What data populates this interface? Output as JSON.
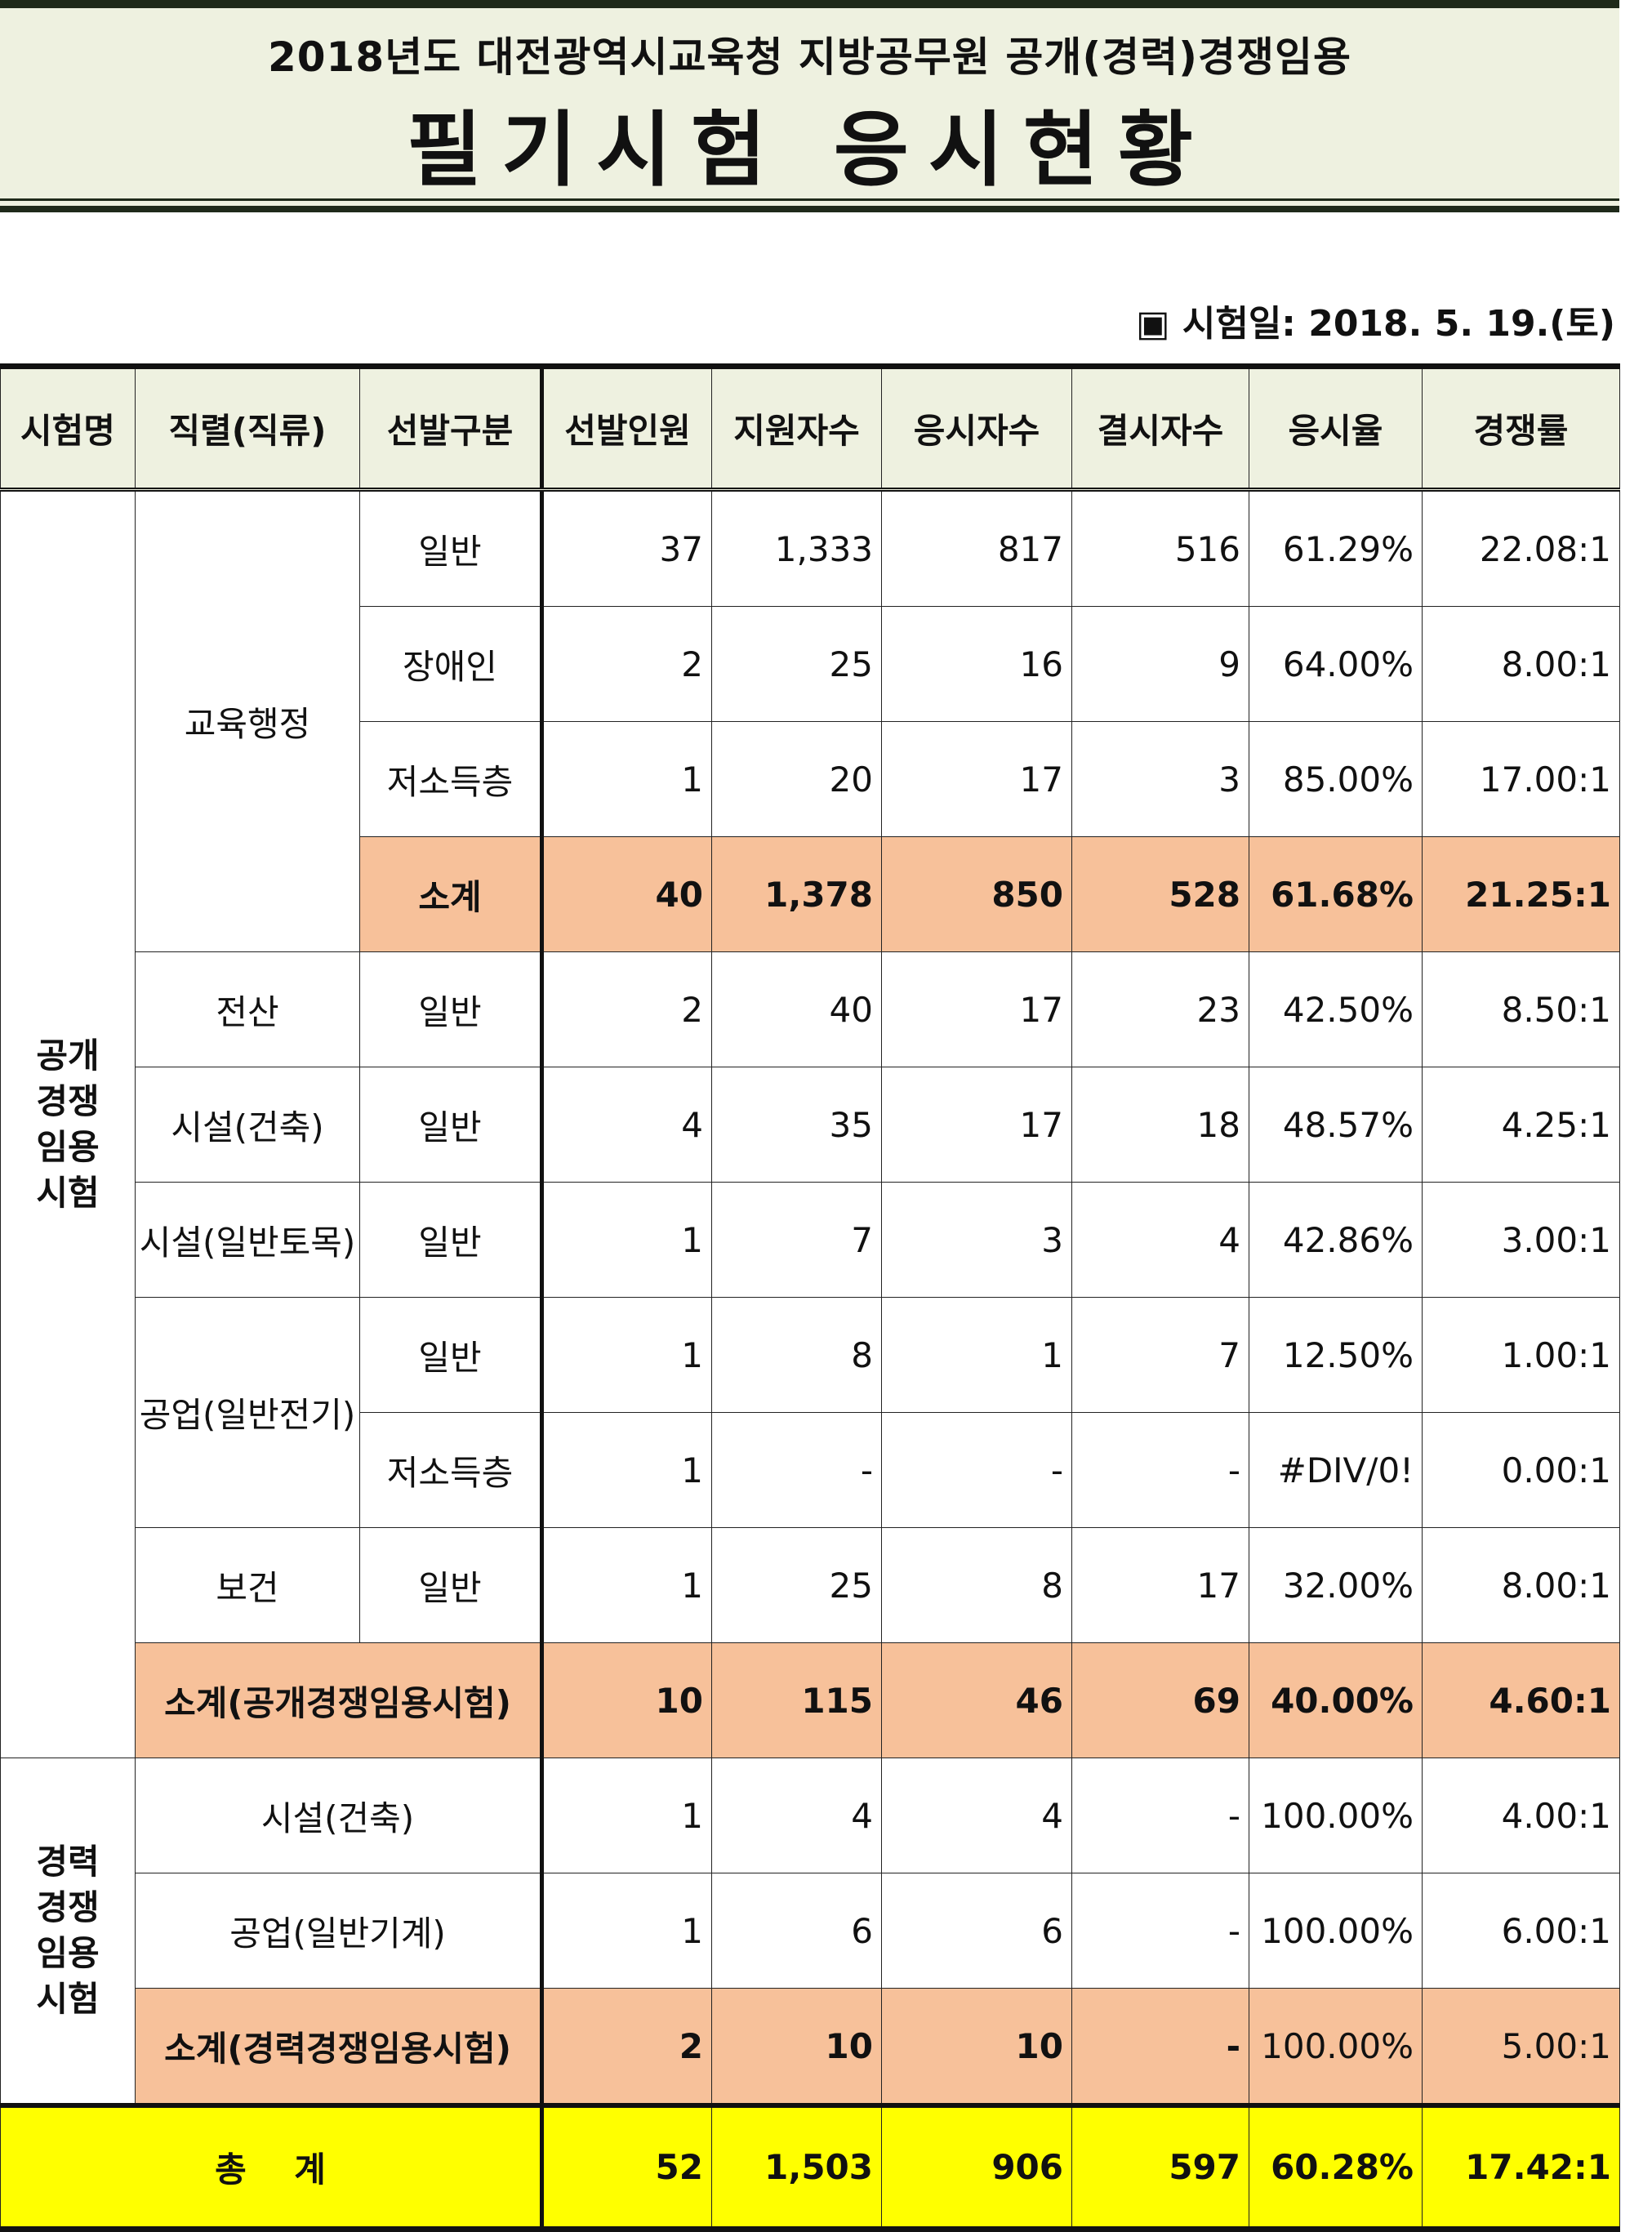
{
  "title_line1": "2018년도 대전광역시교육청 지방공무원 공개(경력)경쟁임용",
  "title_line2": "필기시험 응시현황",
  "exam_date": "▣ 시험일: 2018. 5. 19.(토)",
  "headers": [
    "시험명",
    "직렬(직류)",
    "선발구분",
    "선발인원",
    "지원자수",
    "응시자수",
    "결시자수",
    "응시율",
    "경쟁률"
  ],
  "group1_label": "공개경쟁임용시험",
  "group1_label_lines": [
    "공개",
    "경쟁",
    "임용",
    "시험"
  ],
  "group2_label_lines": [
    "경력",
    "경쟁",
    "임용",
    "시험"
  ],
  "series": {
    "edu_admin": "교육행정",
    "computing": "전산",
    "facility_arch": "시설(건축)",
    "facility_civil": "시설(일반토목)",
    "industry_elec": "공업(일반전기)",
    "health": "보건",
    "career_facility_arch": "시설(건축)",
    "career_industry_mech": "공업(일반기계)"
  },
  "rows": {
    "r1": {
      "type": "일반",
      "sel": "37",
      "app": "1,333",
      "att": "817",
      "abs": "516",
      "rate": "61.29%",
      "comp": "22.08:1"
    },
    "r2": {
      "type": "장애인",
      "sel": "2",
      "app": "25",
      "att": "16",
      "abs": "9",
      "rate": "64.00%",
      "comp": "8.00:1"
    },
    "r3": {
      "type": "저소득층",
      "sel": "1",
      "app": "20",
      "att": "17",
      "abs": "3",
      "rate": "85.00%",
      "comp": "17.00:1"
    },
    "r4": {
      "type": "소계",
      "sel": "40",
      "app": "1,378",
      "att": "850",
      "abs": "528",
      "rate": "61.68%",
      "comp": "21.25:1"
    },
    "r5": {
      "type": "일반",
      "sel": "2",
      "app": "40",
      "att": "17",
      "abs": "23",
      "rate": "42.50%",
      "comp": "8.50:1"
    },
    "r6": {
      "type": "일반",
      "sel": "4",
      "app": "35",
      "att": "17",
      "abs": "18",
      "rate": "48.57%",
      "comp": "4.25:1"
    },
    "r7": {
      "type": "일반",
      "sel": "1",
      "app": "7",
      "att": "3",
      "abs": "4",
      "rate": "42.86%",
      "comp": "3.00:1"
    },
    "r8": {
      "type": "일반",
      "sel": "1",
      "app": "8",
      "att": "1",
      "abs": "7",
      "rate": "12.50%",
      "comp": "1.00:1"
    },
    "r9": {
      "type": "저소득층",
      "sel": "1",
      "app": "-",
      "att": "-",
      "abs": "-",
      "rate": "#DIV/0!",
      "comp": "0.00:1"
    },
    "r10": {
      "type": "일반",
      "sel": "1",
      "app": "25",
      "att": "8",
      "abs": "17",
      "rate": "32.00%",
      "comp": "8.00:1"
    },
    "r11": {
      "label": "소계(공개경쟁임용시험)",
      "sel": "10",
      "app": "115",
      "att": "46",
      "abs": "69",
      "rate": "40.00%",
      "comp": "4.60:1"
    },
    "r12": {
      "sel": "1",
      "app": "4",
      "att": "4",
      "abs": "-",
      "rate": "100.00%",
      "comp": "4.00:1"
    },
    "r13": {
      "sel": "1",
      "app": "6",
      "att": "6",
      "abs": "-",
      "rate": "100.00%",
      "comp": "6.00:1"
    },
    "r14": {
      "label": "소계(경력경쟁임용시험)",
      "sel": "2",
      "app": "10",
      "att": "10",
      "abs": "-",
      "rate": "100.00%",
      "comp": "5.00:1"
    },
    "total": {
      "label": "총    계",
      "sel": "52",
      "app": "1,503",
      "att": "906",
      "abs": "597",
      "rate": "60.28%",
      "comp": "17.42:1"
    }
  },
  "colors": {
    "header_bg": "#eef1e0",
    "subtotal_bg": "#f7c19a",
    "total_bg": "#ffff00"
  }
}
